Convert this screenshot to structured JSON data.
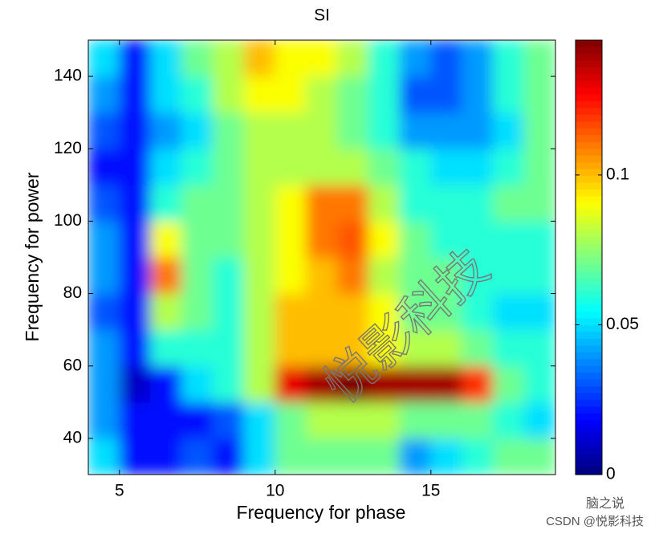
{
  "chart_data": {
    "type": "heatmap",
    "title": "SI",
    "xlabel": "Frequency for phase",
    "ylabel": "Frequency for power",
    "colormap": "jet",
    "x": [
      4.5,
      5.5,
      6.5,
      7.5,
      8.5,
      9.5,
      10.5,
      11.5,
      12.5,
      13.5,
      14.5,
      15.5,
      16.5,
      17.5,
      18.5
    ],
    "y": [
      35,
      45,
      55,
      65,
      75,
      85,
      95,
      105,
      115,
      125,
      135,
      145
    ],
    "z": [
      [
        0.05,
        0.02,
        0.02,
        0.03,
        0.02,
        0.05,
        0.07,
        0.07,
        0.07,
        0.07,
        0.04,
        0.05,
        0.06,
        0.07,
        0.07
      ],
      [
        0.04,
        0.02,
        0.02,
        0.02,
        0.03,
        0.05,
        0.07,
        0.08,
        0.08,
        0.08,
        0.07,
        0.07,
        0.07,
        0.06,
        0.05
      ],
      [
        0.04,
        0.01,
        0.02,
        0.05,
        0.06,
        0.08,
        0.13,
        0.14,
        0.145,
        0.14,
        0.14,
        0.14,
        0.12,
        0.07,
        0.06
      ],
      [
        0.04,
        0.02,
        0.06,
        0.06,
        0.06,
        0.08,
        0.1,
        0.1,
        0.1,
        0.09,
        0.08,
        0.08,
        0.07,
        0.06,
        0.06
      ],
      [
        0.03,
        0.02,
        0.08,
        0.07,
        0.06,
        0.08,
        0.1,
        0.1,
        0.1,
        0.09,
        0.07,
        0.07,
        0.06,
        0.05,
        0.05
      ],
      [
        0.04,
        0.02,
        0.11,
        0.07,
        0.06,
        0.08,
        0.09,
        0.1,
        0.11,
        0.08,
        0.07,
        0.07,
        0.06,
        0.06,
        0.06
      ],
      [
        0.04,
        0.02,
        0.09,
        0.07,
        0.07,
        0.08,
        0.09,
        0.11,
        0.115,
        0.09,
        0.07,
        0.06,
        0.06,
        0.06,
        0.06
      ],
      [
        0.03,
        0.02,
        0.06,
        0.07,
        0.07,
        0.08,
        0.09,
        0.11,
        0.11,
        0.08,
        0.06,
        0.06,
        0.06,
        0.07,
        0.07
      ],
      [
        0.02,
        0.02,
        0.05,
        0.06,
        0.07,
        0.08,
        0.08,
        0.08,
        0.08,
        0.07,
        0.06,
        0.05,
        0.05,
        0.06,
        0.07
      ],
      [
        0.03,
        0.02,
        0.04,
        0.05,
        0.07,
        0.08,
        0.08,
        0.08,
        0.07,
        0.06,
        0.04,
        0.04,
        0.04,
        0.05,
        0.07
      ],
      [
        0.04,
        0.02,
        0.05,
        0.06,
        0.08,
        0.09,
        0.09,
        0.08,
        0.07,
        0.06,
        0.03,
        0.03,
        0.04,
        0.06,
        0.07
      ],
      [
        0.05,
        0.02,
        0.05,
        0.07,
        0.08,
        0.1,
        0.09,
        0.09,
        0.08,
        0.06,
        0.04,
        0.03,
        0.04,
        0.06,
        0.07
      ]
    ],
    "xlim": [
      4,
      19
    ],
    "xticks": [
      5,
      10,
      15
    ],
    "ylim": [
      30,
      150
    ],
    "yticks": [
      40,
      60,
      80,
      100,
      120,
      140
    ],
    "clim": [
      0,
      0.145
    ],
    "cticks": [
      0,
      0.05,
      0.1
    ],
    "annotations": [
      "悦影科技",
      "脑之说",
      "CSDN @悦影科技"
    ]
  }
}
